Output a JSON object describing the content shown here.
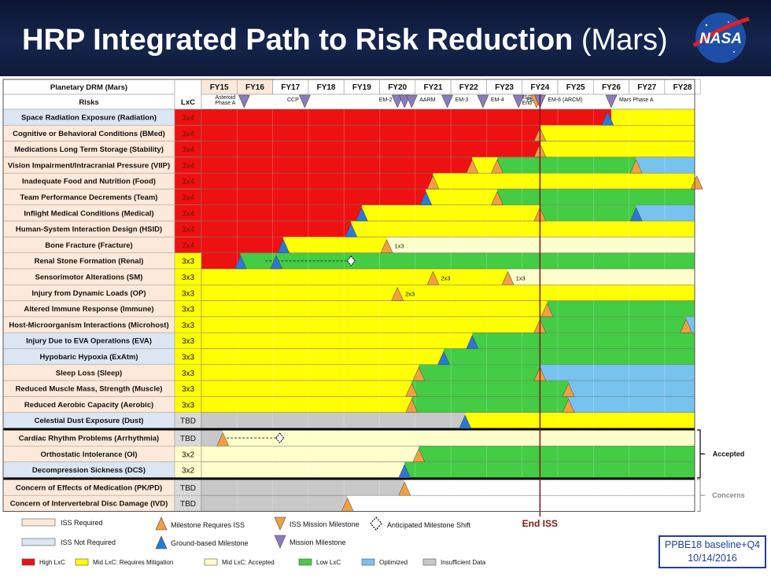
{
  "header": {
    "title_main": "HRP Integrated Path to Risk Reduction",
    "title_sub": "(Mars)",
    "logo_text": "NASA"
  },
  "table": {
    "drm_header": "Planetary DRM (Mars)",
    "risks_header": "Risks",
    "lxc_header": "LxC"
  },
  "colors": {
    "red": "#ee1111",
    "yellow": "#ffff00",
    "paleyellow": "#ffffcc",
    "green": "#44cc44",
    "blue": "#77c3f0",
    "gray": "#c8c8c8",
    "iss_required": "#fde9d9",
    "iss_not_required": "#dce6f2",
    "tbd": "#d9d9d9"
  },
  "chart_data": {
    "type": "table",
    "years": [
      "FY15",
      "FY16",
      "FY17",
      "FY18",
      "FY19",
      "FY20",
      "FY21",
      "FY22",
      "FY23",
      "FY24",
      "FY25",
      "FY26",
      "FY27",
      "FY28"
    ],
    "mission_milestones": [
      {
        "label": "Asteroid Phase A",
        "year": 16.2
      },
      {
        "label": "CCP",
        "year": 17.9
      },
      {
        "label": "EM-2",
        "year": 20.5
      },
      {
        "label": "",
        "year": 20.7
      },
      {
        "label": "AARM",
        "year": 20.9
      },
      {
        "label": "EM-3",
        "year": 21.9
      },
      {
        "label": "EM-4",
        "year": 22.9
      },
      {
        "label": "EM-5",
        "year": 23.9
      },
      {
        "label": "ISS End",
        "year": 24.4
      },
      {
        "label": "EM-6 (ARCM)",
        "year": 24.5
      },
      {
        "label": "Mars Phase A",
        "year": 26.5
      }
    ],
    "end_iss_year": 24.5,
    "end_iss_label": "End ISS",
    "rows": [
      {
        "risk": "Space Radiation Exposure (Radiation)",
        "lxc": "3x4",
        "lxc_color": "red",
        "iss": "not",
        "segments": [
          [
            "red",
            15,
            26.5
          ],
          [
            "yellow",
            26.5,
            29
          ]
        ],
        "marks": [
          {
            "y": 26.4,
            "c": "b"
          }
        ]
      },
      {
        "risk": "Cognitive or Behavioral Conditions (BMed)",
        "lxc": "3x4",
        "lxc_color": "red",
        "iss": "req",
        "segments": [
          [
            "red",
            15,
            24.5
          ],
          [
            "yellow",
            24.5,
            29
          ]
        ],
        "marks": [
          {
            "y": 24.5,
            "c": "o"
          }
        ]
      },
      {
        "risk": "Medications Long Term Storage (Stability)",
        "lxc": "3x4",
        "lxc_color": "red",
        "iss": "req",
        "segments": [
          [
            "red",
            15,
            24.5
          ],
          [
            "yellow",
            24.5,
            29
          ]
        ],
        "marks": [
          {
            "y": 24.5,
            "c": "o"
          }
        ]
      },
      {
        "risk": "Vision Impairment/Intracranial Pressure (VIIP)",
        "lxc": "3x4",
        "lxc_color": "red",
        "iss": "req",
        "segments": [
          [
            "red",
            15,
            22.6
          ],
          [
            "yellow",
            22.6,
            23.3
          ],
          [
            "green",
            23.3,
            27.2
          ],
          [
            "blue",
            27.2,
            29
          ]
        ],
        "marks": [
          {
            "y": 22.6,
            "c": "o"
          },
          {
            "y": 23.3,
            "c": "o"
          },
          {
            "y": 27.2,
            "c": "o"
          }
        ]
      },
      {
        "risk": "Inadequate Food and Nutrition (Food)",
        "lxc": "3x4",
        "lxc_color": "red",
        "iss": "req",
        "segments": [
          [
            "red",
            15,
            21.5
          ],
          [
            "yellow",
            21.5,
            28.9
          ],
          [
            "green",
            28.9,
            29
          ]
        ],
        "marks": [
          {
            "y": 21.5,
            "c": "o"
          },
          {
            "y": 28.9,
            "c": "o"
          }
        ]
      },
      {
        "risk": "Team Performance Decrements (Team)",
        "lxc": "3x4",
        "lxc_color": "red",
        "iss": "req",
        "segments": [
          [
            "red",
            15,
            21.3
          ],
          [
            "yellow",
            21.3,
            23.3
          ],
          [
            "green",
            23.3,
            29
          ]
        ],
        "marks": [
          {
            "y": 21.3,
            "c": "b"
          },
          {
            "y": 23.3,
            "c": "o"
          }
        ]
      },
      {
        "risk": "Inflight Medical Conditions (Medical)",
        "lxc": "3x4",
        "lxc_color": "red",
        "iss": "req",
        "segments": [
          [
            "red",
            15,
            19.5
          ],
          [
            "yellow",
            19.5,
            24.5
          ],
          [
            "green",
            24.5,
            27.2
          ],
          [
            "blue",
            27.2,
            29
          ]
        ],
        "marks": [
          {
            "y": 19.5,
            "c": "b"
          },
          {
            "y": 24.5,
            "c": "o"
          },
          {
            "y": 27.2,
            "c": "b"
          }
        ]
      },
      {
        "risk": "Human-System Interaction Design (HSID)",
        "lxc": "3x4",
        "lxc_color": "red",
        "iss": "req",
        "segments": [
          [
            "red",
            15,
            19.2
          ],
          [
            "yellow",
            19.2,
            29
          ]
        ],
        "marks": [
          {
            "y": 19.2,
            "c": "b"
          }
        ]
      },
      {
        "risk": "Bone Fracture (Fracture)",
        "lxc": "2x4",
        "lxc_color": "red",
        "iss": "req",
        "segments": [
          [
            "red",
            15,
            17.3
          ],
          [
            "yellow",
            17.3,
            20.2
          ],
          [
            "paleyellow",
            20.2,
            29
          ]
        ],
        "marks": [
          {
            "y": 17.3,
            "c": "b"
          },
          {
            "y": 20.2,
            "c": "o",
            "t": "1x3"
          }
        ]
      },
      {
        "risk": "Renal Stone Formation (Renal)",
        "lxc": "3x3",
        "lxc_color": "yellow",
        "iss": "req",
        "segments": [
          [
            "red",
            15,
            16.1
          ],
          [
            "green",
            16.1,
            29
          ]
        ],
        "marks": [
          {
            "y": 16.1,
            "c": "b"
          },
          {
            "y": 17.1,
            "c": "b"
          }
        ]
      },
      {
        "risk": "Sensorimotor Alterations (SM)",
        "lxc": "3x3",
        "lxc_color": "yellow",
        "iss": "req",
        "segments": [
          [
            "yellow",
            15,
            21.5
          ],
          [
            "yellow",
            21.5,
            23.6
          ],
          [
            "paleyellow",
            23.6,
            29
          ]
        ],
        "marks": [
          {
            "y": 21.5,
            "c": "o",
            "t": "2x3"
          },
          {
            "y": 23.6,
            "c": "o",
            "t": "1x3"
          }
        ]
      },
      {
        "risk": "Injury from Dynamic Loads (OP)",
        "lxc": "3x3",
        "lxc_color": "yellow",
        "iss": "req",
        "segments": [
          [
            "yellow",
            15,
            29
          ]
        ],
        "marks": [
          {
            "y": 20.5,
            "c": "o",
            "t": "2x3"
          }
        ]
      },
      {
        "risk": "Altered Immune Response (Immune)",
        "lxc": "3x3",
        "lxc_color": "yellow",
        "iss": "req",
        "segments": [
          [
            "yellow",
            15,
            24.7
          ],
          [
            "green",
            24.7,
            29
          ]
        ],
        "marks": [
          {
            "y": 24.7,
            "c": "o"
          }
        ]
      },
      {
        "risk": "Host-Microorganism Interactions (Microhost)",
        "lxc": "3x3",
        "lxc_color": "yellow",
        "iss": "req",
        "segments": [
          [
            "yellow",
            15,
            24.5
          ],
          [
            "green",
            24.5,
            28.6
          ],
          [
            "blue",
            28.6,
            29
          ]
        ],
        "marks": [
          {
            "y": 24.5,
            "c": "o"
          },
          {
            "y": 28.6,
            "c": "o"
          }
        ]
      },
      {
        "risk": "Injury Due to EVA Operations (EVA)",
        "lxc": "3x3",
        "lxc_color": "yellow",
        "iss": "not",
        "segments": [
          [
            "yellow",
            15,
            22.6
          ],
          [
            "green",
            22.6,
            29
          ]
        ],
        "marks": [
          {
            "y": 22.6,
            "c": "b"
          }
        ]
      },
      {
        "risk": "Hypobaric Hypoxia (ExAtm)",
        "lxc": "3x3",
        "lxc_color": "yellow",
        "iss": "not",
        "segments": [
          [
            "yellow",
            15,
            21.8
          ],
          [
            "green",
            21.8,
            29
          ]
        ],
        "marks": [
          {
            "y": 21.8,
            "c": "b"
          }
        ]
      },
      {
        "risk": "Sleep Loss (Sleep)",
        "lxc": "3x3",
        "lxc_color": "yellow",
        "iss": "req",
        "segments": [
          [
            "yellow",
            15,
            21.1
          ],
          [
            "green",
            21.1,
            24.5
          ],
          [
            "blue",
            24.5,
            29
          ]
        ],
        "marks": [
          {
            "y": 21.1,
            "c": "o"
          },
          {
            "y": 24.5,
            "c": "o"
          }
        ]
      },
      {
        "risk": "Reduced Muscle Mass, Strength (Muscle)",
        "lxc": "3x3",
        "lxc_color": "yellow",
        "iss": "req",
        "segments": [
          [
            "yellow",
            15,
            20.9
          ],
          [
            "green",
            20.9,
            25.3
          ],
          [
            "blue",
            25.3,
            29
          ]
        ],
        "marks": [
          {
            "y": 20.9,
            "c": "o"
          },
          {
            "y": 25.3,
            "c": "o"
          }
        ]
      },
      {
        "risk": "Reduced Aerobic Capacity (Aerobic)",
        "lxc": "3x3",
        "lxc_color": "yellow",
        "iss": "req",
        "segments": [
          [
            "yellow",
            15,
            20.9
          ],
          [
            "green",
            20.9,
            25.3
          ],
          [
            "blue",
            25.3,
            29
          ]
        ],
        "marks": [
          {
            "y": 20.9,
            "c": "o"
          },
          {
            "y": 25.3,
            "c": "o"
          }
        ]
      },
      {
        "risk": "Celestial Dust Exposure (Dust)",
        "lxc": "TBD",
        "lxc_color": "tbd",
        "iss": "not",
        "segments": [
          [
            "gray",
            15,
            22.4
          ],
          [
            "yellow",
            22.4,
            29
          ]
        ],
        "marks": [
          {
            "y": 22.4,
            "c": "b"
          }
        ]
      },
      {
        "risk": "Cardiac Rhythm Problems (Arrhythmia)",
        "lxc": "TBD",
        "lxc_color": "tbd",
        "iss": "req",
        "segments": [
          [
            "gray",
            15,
            15.6
          ],
          [
            "paleyellow",
            15.6,
            29
          ]
        ],
        "marks": [
          {
            "y": 15.6,
            "c": "o"
          }
        ]
      },
      {
        "risk": "Orthostatic Intolerance (OI)",
        "lxc": "3x2",
        "lxc_color": "paleyellow",
        "iss": "req",
        "segments": [
          [
            "paleyellow",
            15,
            21.1
          ],
          [
            "green",
            21.1,
            29
          ]
        ],
        "marks": [
          {
            "y": 21.1,
            "c": "o"
          }
        ]
      },
      {
        "risk": "Decompression Sickness (DCS)",
        "lxc": "3x2",
        "lxc_color": "paleyellow",
        "iss": "not",
        "segments": [
          [
            "paleyellow",
            15,
            20.7
          ],
          [
            "green",
            20.7,
            29
          ]
        ],
        "marks": [
          {
            "y": 20.7,
            "c": "b"
          }
        ]
      },
      {
        "risk": "Concern of Effects of Medication (PK/PD)",
        "lxc": "TBD",
        "lxc_color": "tbd",
        "iss": "req",
        "segments": [
          [
            "gray",
            15,
            20.7
          ],
          [
            "white",
            20.7,
            29
          ]
        ],
        "marks": [
          {
            "y": 20.7,
            "c": "o"
          }
        ]
      },
      {
        "risk": "Concern of Intervertebral Disc Damage (IVD)",
        "lxc": "TBD",
        "lxc_color": "tbd",
        "iss": "req",
        "segments": [
          [
            "gray",
            15,
            19.1
          ],
          [
            "white",
            19.1,
            29
          ]
        ],
        "marks": [
          {
            "y": 19.1,
            "c": "o"
          }
        ]
      }
    ],
    "shifts": [
      {
        "row": 9,
        "from": 16.8,
        "to": 19.2
      },
      {
        "row": 20,
        "from": 15.6,
        "to": 17.2
      }
    ],
    "groups": {
      "accepted": "Accepted",
      "concerns": "Concerns"
    }
  },
  "legend": {
    "iss_required": "ISS Required",
    "iss_not_required": "ISS Not Required",
    "milestone_requires_iss": "Milestone Requires ISS",
    "ground_based": "Ground-based Milestone",
    "iss_mission": "ISS Mission Milestone",
    "mission": "Mission Milestone",
    "shift": "Anticipated Milestone Shift",
    "high": "High LxC",
    "mid_req": "Mid LxC: Requires Mitigation",
    "mid_acc": "Mid LxC: Accepted",
    "low": "Low LxC",
    "optimized": "Optimized",
    "insufficient": "Insufficient Data"
  },
  "footer": {
    "baseline": "PPBE18 baseline+Q4",
    "date": "10/14/2016"
  }
}
